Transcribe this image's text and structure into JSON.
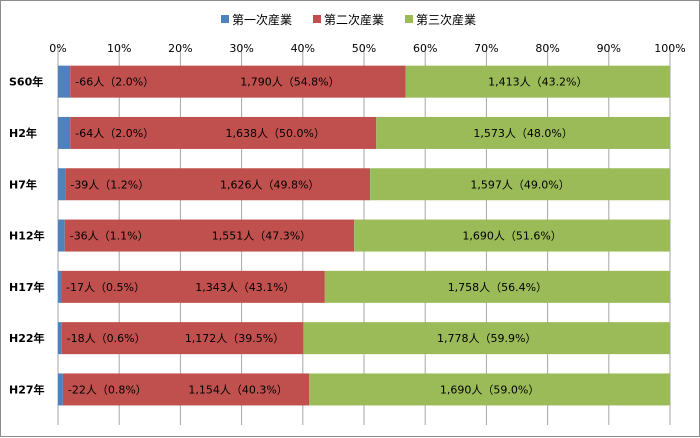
{
  "chart_data": {
    "type": "bar",
    "orientation": "horizontal",
    "stacked": "percent",
    "categories": [
      "S60年",
      "H2年",
      "H7年",
      "H12年",
      "H17年",
      "H22年",
      "H27年"
    ],
    "x_ticks": [
      "0%",
      "10%",
      "20%",
      "30%",
      "40%",
      "50%",
      "60%",
      "70%",
      "80%",
      "90%",
      "100%"
    ],
    "xlim": [
      0,
      100
    ],
    "grid": true,
    "legend_position": "top",
    "series": [
      {
        "name": "第一次産業",
        "color": "#4f81bd",
        "values": [
          2.0,
          2.0,
          1.2,
          1.1,
          0.5,
          0.6,
          0.8
        ],
        "labels": [
          "-66人（2.0%）",
          "-64人（2.0%）",
          "-39人（1.2%）",
          "-36人（1.1%）",
          "-17人（0.5%）",
          "-18人（0.6%）",
          "-22人（0.8%）"
        ]
      },
      {
        "name": "第二次産業",
        "color": "#c0504d",
        "values": [
          54.8,
          50.0,
          49.8,
          47.3,
          43.1,
          39.5,
          40.3
        ],
        "labels": [
          "1,790人（54.8%）",
          "1,638人（50.0%）",
          "1,626人（49.8%）",
          "1,551人（47.3%）",
          "1,343人（43.1%）",
          "1,172人（39.5%）",
          "1,154人（40.3%）"
        ]
      },
      {
        "name": "第三次産業",
        "color": "#9bbb59",
        "values": [
          43.2,
          48.0,
          49.0,
          51.6,
          56.4,
          59.9,
          59.0
        ],
        "labels": [
          "1,413人（43.2%）",
          "1,573人（48.0%）",
          "1,597人（49.0%）",
          "1,690人（51.6%）",
          "1,758人（56.4%）",
          "1,778人（59.9%）",
          "1,690人（59.0%）"
        ]
      }
    ]
  }
}
